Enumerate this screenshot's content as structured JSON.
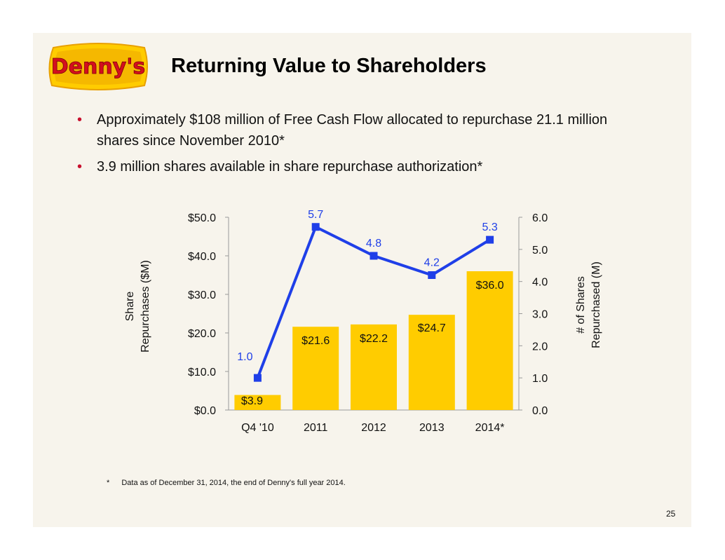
{
  "logo": {
    "text": "Denny's"
  },
  "title": "Returning Value to Shareholders",
  "bullets": [
    "Approximately $108 million of Free Cash Flow allocated to repurchase 21.1 million shares since November 2010*",
    "3.9 million shares available in share repurchase authorization*"
  ],
  "footnote": {
    "marker": "*",
    "text": "Data as of December 31, 2014, the end of Denny's full year 2014."
  },
  "page_number": "25",
  "colors": {
    "bar": "#ffcc00",
    "line": "#1f3fe8",
    "accent": "#c8102e"
  },
  "chart_data": {
    "type": "bar",
    "categories": [
      "Q4 '10",
      "2011",
      "2012",
      "2013",
      "2014*"
    ],
    "series": [
      {
        "type": "bar",
        "axis": "left",
        "values": [
          3.9,
          21.6,
          22.2,
          24.7,
          36.0
        ],
        "labels": [
          "$3.9",
          "$21.6",
          "$22.2",
          "$24.7",
          "$36.0"
        ]
      },
      {
        "type": "line",
        "axis": "right",
        "values": [
          1.0,
          5.7,
          4.8,
          4.2,
          5.3
        ],
        "labels": [
          "1.0",
          "5.7",
          "4.8",
          "4.2",
          "5.3"
        ]
      }
    ],
    "ylabel_left": [
      "Share",
      "Repurchases ($M)"
    ],
    "ylabel_right": [
      "# of Shares",
      "Repurchased (M)"
    ],
    "ylim_left": [
      0,
      50
    ],
    "ylim_right": [
      0,
      6
    ],
    "yticks_left": [
      "$0.0",
      "$10.0",
      "$20.0",
      "$30.0",
      "$40.0",
      "$50.0"
    ],
    "yticks_right": [
      "0.0",
      "1.0",
      "2.0",
      "3.0",
      "4.0",
      "5.0",
      "6.0"
    ],
    "grid": false,
    "legend": "none"
  }
}
